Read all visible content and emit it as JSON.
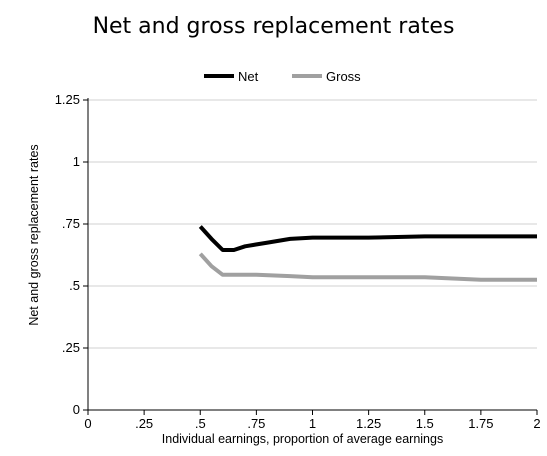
{
  "chart_data": {
    "type": "line",
    "title": "Net and gross replacement rates",
    "xlabel": "Individual earnings, proportion of average earnings",
    "ylabel": "Net and gross replacement rates",
    "xlim": [
      0,
      2
    ],
    "ylim": [
      0,
      1.25
    ],
    "x_ticks": [
      {
        "value": 0,
        "label": "0"
      },
      {
        "value": 0.25,
        "label": ".25"
      },
      {
        "value": 0.5,
        "label": ".5"
      },
      {
        "value": 0.75,
        "label": ".75"
      },
      {
        "value": 1,
        "label": "1"
      },
      {
        "value": 1.25,
        "label": "1.25"
      },
      {
        "value": 1.5,
        "label": "1.5"
      },
      {
        "value": 1.75,
        "label": "1.75"
      },
      {
        "value": 2,
        "label": "2"
      }
    ],
    "y_ticks": [
      {
        "value": 0,
        "label": "0"
      },
      {
        "value": 0.25,
        "label": ".25"
      },
      {
        "value": 0.5,
        "label": ".5"
      },
      {
        "value": 0.75,
        "label": ".75"
      },
      {
        "value": 1,
        "label": "1"
      },
      {
        "value": 1.25,
        "label": "1.25"
      }
    ],
    "grid": true,
    "legend_position": "top-center",
    "series": [
      {
        "name": "Net",
        "color": "#000000",
        "x": [
          0.5,
          0.55,
          0.6,
          0.65,
          0.7,
          0.8,
          0.9,
          1.0,
          1.25,
          1.5,
          1.75,
          2.0
        ],
        "y": [
          0.74,
          0.69,
          0.645,
          0.645,
          0.66,
          0.675,
          0.69,
          0.695,
          0.695,
          0.7,
          0.7,
          0.7
        ]
      },
      {
        "name": "Gross",
        "color": "#a0a0a0",
        "x": [
          0.5,
          0.55,
          0.6,
          0.75,
          0.9,
          1.0,
          1.25,
          1.5,
          1.75,
          2.0
        ],
        "y": [
          0.63,
          0.58,
          0.545,
          0.545,
          0.54,
          0.535,
          0.535,
          0.535,
          0.525,
          0.525
        ]
      }
    ]
  }
}
